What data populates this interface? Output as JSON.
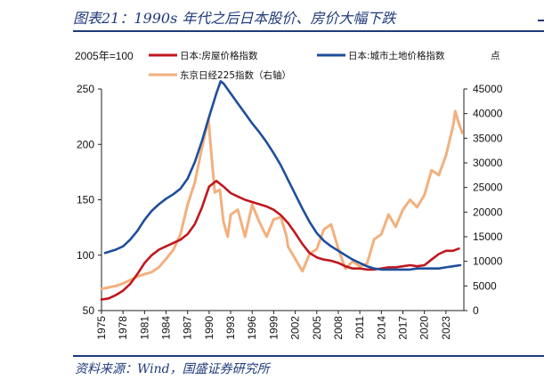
{
  "title": "图表21：1990s 年代之后日本股价、房价大幅下跌",
  "source": "资料来源：Wind，国盛证券研究所",
  "chart_data": {
    "type": "line",
    "left_axis_label": "2005年=100",
    "right_axis_label": "点",
    "left_ylim": [
      50,
      250
    ],
    "right_ylim": [
      0,
      45000
    ],
    "left_ticks": [
      50,
      100,
      150,
      200,
      250
    ],
    "right_ticks": [
      0,
      5000,
      10000,
      15000,
      20000,
      25000,
      30000,
      35000,
      40000,
      45000
    ],
    "x_ticks": [
      "1975",
      "1978",
      "1981",
      "1984",
      "1987",
      "1990",
      "1993",
      "1996",
      "1999",
      "2002",
      "2005",
      "2008",
      "2011",
      "2014",
      "2017",
      "2020",
      "2023"
    ],
    "xlim": [
      1975,
      2025.5
    ],
    "legend": [
      {
        "name": "日本:房屋价格指数",
        "color": "#c0171e"
      },
      {
        "name": "日本:城市土地价格指数",
        "color": "#1e4e9c"
      },
      {
        "name": "东京日经225指数（右轴）",
        "color": "#f2b07e"
      }
    ],
    "series": [
      {
        "name": "日本:房屋价格指数",
        "axis": "left",
        "color": "#c0171e",
        "points": [
          [
            1975,
            60
          ],
          [
            1976,
            61
          ],
          [
            1977,
            64
          ],
          [
            1978,
            68
          ],
          [
            1979,
            74
          ],
          [
            1980,
            83
          ],
          [
            1981,
            93
          ],
          [
            1982,
            100
          ],
          [
            1983,
            105
          ],
          [
            1984,
            108
          ],
          [
            1985,
            111
          ],
          [
            1986,
            114
          ],
          [
            1987,
            119
          ],
          [
            1988,
            128
          ],
          [
            1989,
            143
          ],
          [
            1990,
            162
          ],
          [
            1991,
            167
          ],
          [
            1992,
            162
          ],
          [
            1993,
            156
          ],
          [
            1994,
            153
          ],
          [
            1995,
            150
          ],
          [
            1996,
            148
          ],
          [
            1997,
            146
          ],
          [
            1998,
            144
          ],
          [
            1999,
            141
          ],
          [
            2000,
            136
          ],
          [
            2001,
            129
          ],
          [
            2002,
            120
          ],
          [
            2003,
            110
          ],
          [
            2004,
            102
          ],
          [
            2005,
            98
          ],
          [
            2006,
            96
          ],
          [
            2007,
            95
          ],
          [
            2008,
            93
          ],
          [
            2009,
            90
          ],
          [
            2010,
            88
          ],
          [
            2011,
            88
          ],
          [
            2012,
            87
          ],
          [
            2013,
            87
          ],
          [
            2014,
            88
          ],
          [
            2015,
            89
          ],
          [
            2016,
            89
          ],
          [
            2017,
            90
          ],
          [
            2018,
            91
          ],
          [
            2019,
            90
          ],
          [
            2020,
            91
          ],
          [
            2021,
            96
          ],
          [
            2022,
            101
          ],
          [
            2023,
            104
          ],
          [
            2024,
            104
          ],
          [
            2024.8,
            106
          ]
        ]
      },
      {
        "name": "日本:城市土地价格指数",
        "axis": "left",
        "color": "#1e4e9c",
        "points": [
          [
            1975.5,
            102
          ],
          [
            1976,
            103
          ],
          [
            1977,
            105
          ],
          [
            1978,
            108
          ],
          [
            1979,
            114
          ],
          [
            1980,
            122
          ],
          [
            1981,
            132
          ],
          [
            1982,
            140
          ],
          [
            1983,
            146
          ],
          [
            1984,
            151
          ],
          [
            1985,
            155
          ],
          [
            1986,
            160
          ],
          [
            1987,
            169
          ],
          [
            1988,
            184
          ],
          [
            1989,
            203
          ],
          [
            1990,
            225
          ],
          [
            1991,
            246
          ],
          [
            1991.6,
            257
          ],
          [
            1992,
            255
          ],
          [
            1993,
            246
          ],
          [
            1994,
            237
          ],
          [
            1995,
            228
          ],
          [
            1996,
            219
          ],
          [
            1997,
            211
          ],
          [
            1998,
            202
          ],
          [
            1999,
            192
          ],
          [
            2000,
            181
          ],
          [
            2001,
            168
          ],
          [
            2002,
            155
          ],
          [
            2003,
            142
          ],
          [
            2004,
            130
          ],
          [
            2005,
            120
          ],
          [
            2006,
            113
          ],
          [
            2007,
            108
          ],
          [
            2008,
            104
          ],
          [
            2009,
            100
          ],
          [
            2010,
            96
          ],
          [
            2011,
            93
          ],
          [
            2012,
            90
          ],
          [
            2013,
            88
          ],
          [
            2014,
            87
          ],
          [
            2015,
            87
          ],
          [
            2016,
            87
          ],
          [
            2017,
            87
          ],
          [
            2018,
            87
          ],
          [
            2019,
            88
          ],
          [
            2020,
            88
          ],
          [
            2021,
            88
          ],
          [
            2022,
            88
          ],
          [
            2023,
            89
          ],
          [
            2024,
            90
          ],
          [
            2025,
            91
          ]
        ]
      },
      {
        "name": "东京日经225指数（右轴）",
        "axis": "right",
        "color": "#f2b07e",
        "points": [
          [
            1975,
            4400
          ],
          [
            1976,
            4700
          ],
          [
            1977,
            5000
          ],
          [
            1978,
            5500
          ],
          [
            1979,
            6200
          ],
          [
            1980,
            6900
          ],
          [
            1981,
            7400
          ],
          [
            1982,
            7800
          ],
          [
            1983,
            8800
          ],
          [
            1984,
            10500
          ],
          [
            1985,
            12300
          ],
          [
            1986,
            15500
          ],
          [
            1987,
            21500
          ],
          [
            1988,
            26000
          ],
          [
            1989,
            33000
          ],
          [
            1989.9,
            38900
          ],
          [
            1990.3,
            32000
          ],
          [
            1990.8,
            24000
          ],
          [
            1991.5,
            24500
          ],
          [
            1992,
            18000
          ],
          [
            1992.6,
            15000
          ],
          [
            1993,
            19500
          ],
          [
            1994,
            20500
          ],
          [
            1995,
            15000
          ],
          [
            1996,
            21500
          ],
          [
            1997,
            18000
          ],
          [
            1998,
            15000
          ],
          [
            1999,
            18500
          ],
          [
            2000,
            19000
          ],
          [
            2000.8,
            15000
          ],
          [
            2001,
            13000
          ],
          [
            2002,
            10500
          ],
          [
            2003,
            8000
          ],
          [
            2004,
            11500
          ],
          [
            2005,
            12500
          ],
          [
            2006,
            16500
          ],
          [
            2007,
            17500
          ],
          [
            2008,
            12500
          ],
          [
            2009,
            8500
          ],
          [
            2010,
            10000
          ],
          [
            2011,
            9000
          ],
          [
            2012,
            9500
          ],
          [
            2013,
            14500
          ],
          [
            2014,
            15500
          ],
          [
            2015,
            19500
          ],
          [
            2016,
            17000
          ],
          [
            2017,
            20500
          ],
          [
            2018,
            22500
          ],
          [
            2019,
            21000
          ],
          [
            2020,
            23500
          ],
          [
            2021,
            28500
          ],
          [
            2022,
            27500
          ],
          [
            2023,
            31500
          ],
          [
            2024,
            37500
          ],
          [
            2024.3,
            40500
          ],
          [
            2024.8,
            38000
          ],
          [
            2025.3,
            36000
          ]
        ]
      }
    ]
  }
}
